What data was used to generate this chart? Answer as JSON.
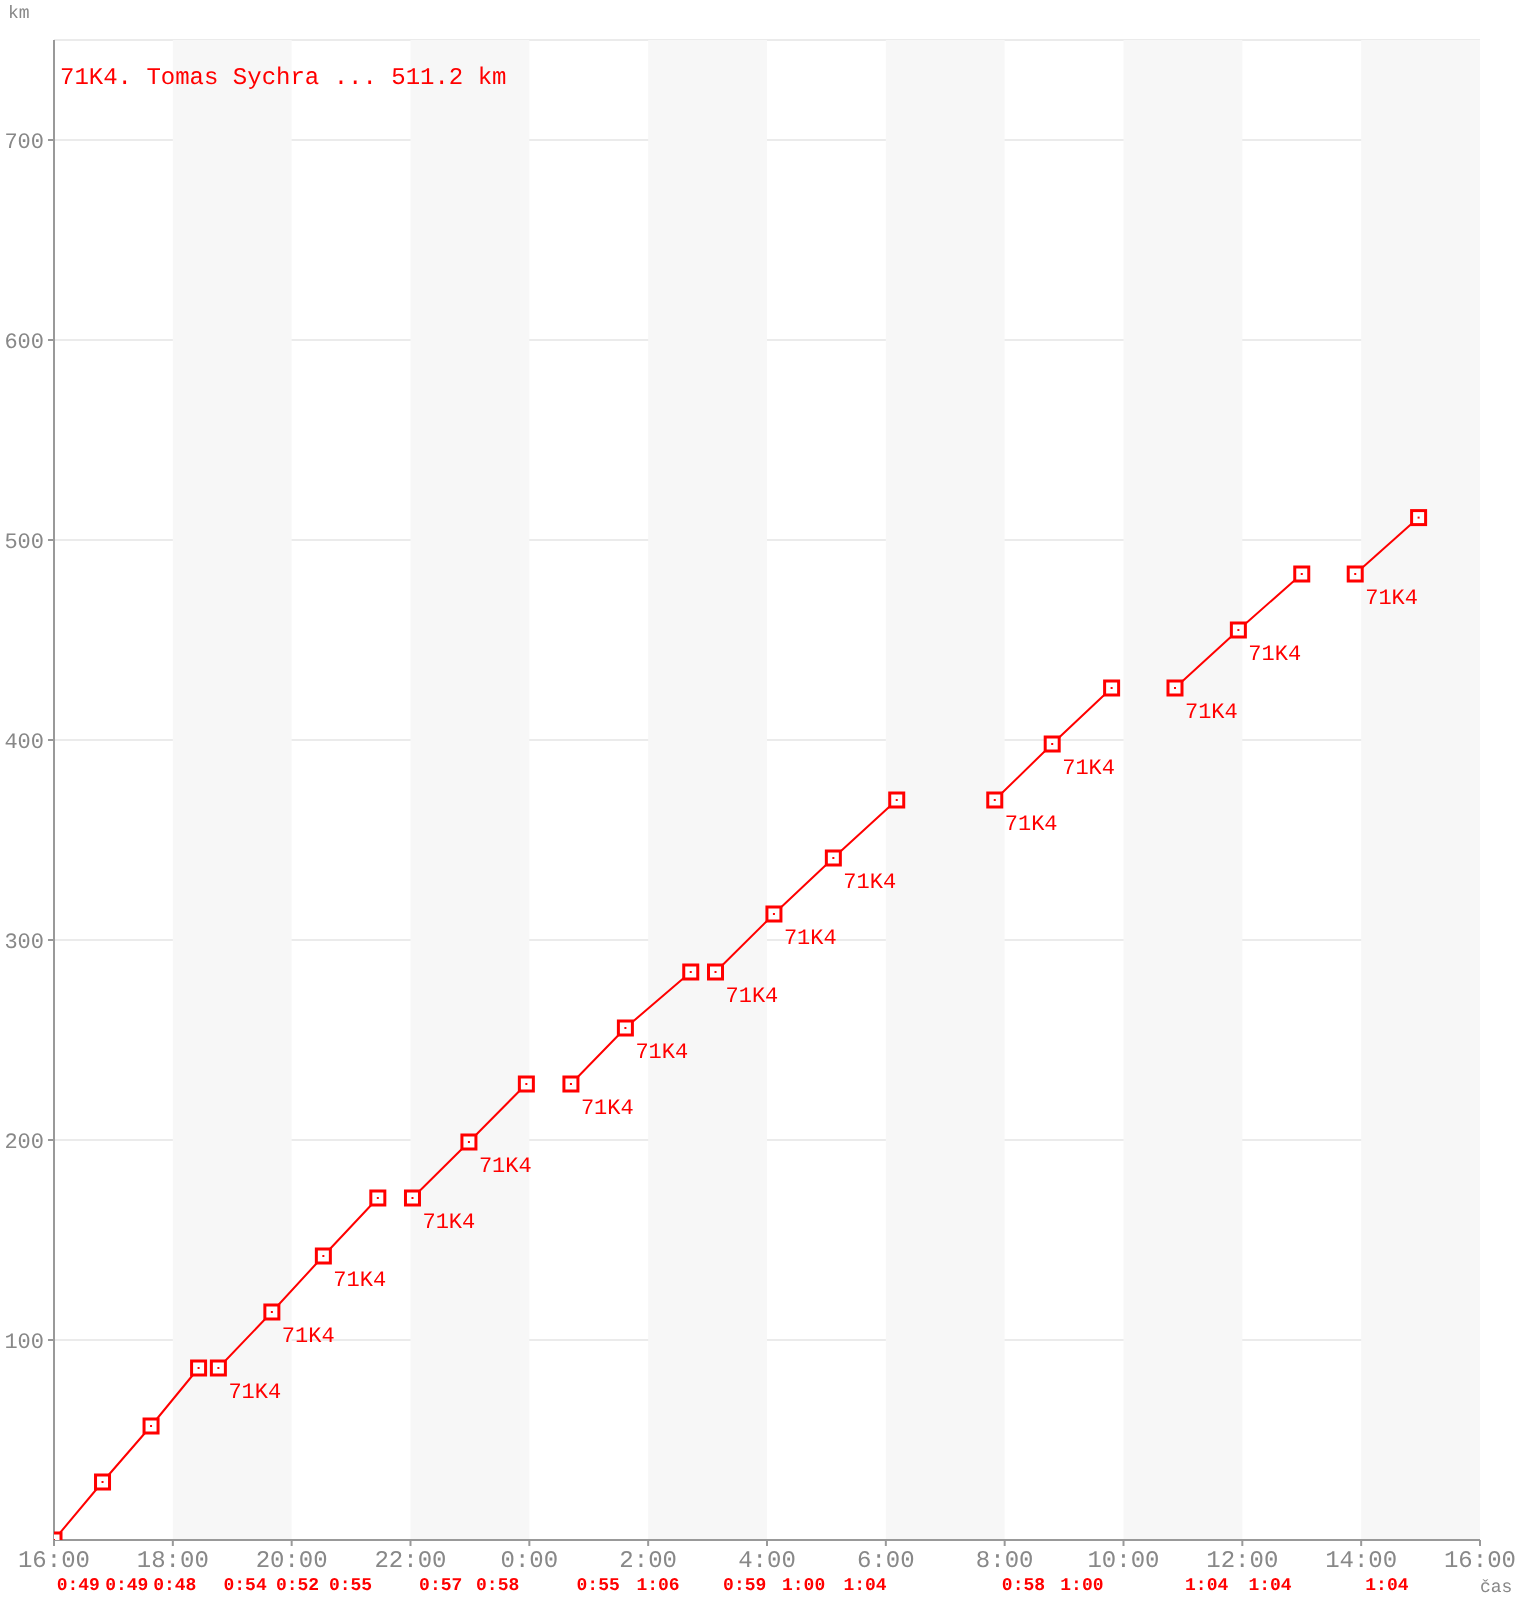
{
  "chart_data": {
    "type": "line",
    "title": "71K4. Tomas Sychra ... 511.2 km",
    "xlabel": "čas",
    "ylabel": "km",
    "xlim": [
      "2000-01-01T16:00",
      "2000-01-02T16:00"
    ],
    "xticks": [
      {
        "value": "2000-01-01T16:00",
        "label": "16:00"
      },
      {
        "value": "2000-01-01T18:00",
        "label": "18:00"
      },
      {
        "value": "2000-01-01T20:00",
        "label": "20:00"
      },
      {
        "value": "2000-01-01T22:00",
        "label": "22:00"
      },
      {
        "value": "2000-01-02T00:00",
        "label": "0:00"
      },
      {
        "value": "2000-01-02T02:00",
        "label": "2:00"
      },
      {
        "value": "2000-01-02T04:00",
        "label": "4:00"
      },
      {
        "value": "2000-01-02T06:00",
        "label": "6:00"
      },
      {
        "value": "2000-01-02T08:00",
        "label": "8:00"
      },
      {
        "value": "2000-01-02T10:00",
        "label": "10:00"
      },
      {
        "value": "2000-01-02T12:00",
        "label": "12:00"
      },
      {
        "value": "2000-01-02T14:00",
        "label": "14:00"
      },
      {
        "value": "2000-01-02T16:00",
        "label": "16:00"
      }
    ],
    "ylim": [
      0,
      750
    ],
    "yticks": [
      100,
      200,
      300,
      400,
      500,
      600,
      700
    ],
    "grid": "y",
    "marker": "square",
    "line_style": "solid",
    "bands": [
      {
        "axis": "x",
        "from": "2000-01-01T18:00",
        "to": "2000-01-01T20:00",
        "color": "#f7f7f7"
      },
      {
        "axis": "x",
        "from": "2000-01-01T22:00",
        "to": "2000-01-02T00:00",
        "color": "#f7f7f7"
      },
      {
        "axis": "x",
        "from": "2000-01-02T02:00",
        "to": "2000-01-02T04:00",
        "color": "#f7f7f7"
      },
      {
        "axis": "x",
        "from": "2000-01-02T06:00",
        "to": "2000-01-02T08:00",
        "color": "#f7f7f7"
      },
      {
        "axis": "x",
        "from": "2000-01-02T10:00",
        "to": "2000-01-02T12:00",
        "color": "#f7f7f7"
      },
      {
        "axis": "x",
        "from": "2000-01-02T14:00",
        "to": "2000-01-02T16:00",
        "color": "#f7f7f7"
      }
    ],
    "series": [
      {
        "color": "#ff0000",
        "x": [
          "2000-01-01T16:00",
          "2000-01-01T16:49",
          "2000-01-01T17:38",
          "2000-01-01T18:26"
        ],
        "values": [
          0,
          29,
          57,
          86
        ]
      },
      {
        "color": "#ff0000",
        "x": [
          "2000-01-01T18:46",
          "2000-01-01T19:40",
          "2000-01-01T20:32",
          "2000-01-01T21:27"
        ],
        "values": [
          86,
          114,
          142,
          171
        ]
      },
      {
        "color": "#ff0000",
        "x": [
          "2000-01-01T22:02",
          "2000-01-01T22:59",
          "2000-01-01T23:57"
        ],
        "values": [
          171,
          199,
          228
        ]
      },
      {
        "color": "#ff0000",
        "x": [
          "2000-01-02T00:42",
          "2000-01-02T01:37",
          "2000-01-02T02:43"
        ],
        "values": [
          228,
          256,
          284
        ]
      },
      {
        "color": "#ff0000",
        "x": [
          "2000-01-02T03:08",
          "2000-01-02T04:07",
          "2000-01-02T05:07",
          "2000-01-02T06:11"
        ],
        "values": [
          284,
          313,
          341,
          370
        ]
      },
      {
        "color": "#ff0000",
        "x": [
          "2000-01-02T07:50",
          "2000-01-02T08:48",
          "2000-01-02T09:48"
        ],
        "values": [
          370,
          398,
          426
        ]
      },
      {
        "color": "#ff0000",
        "x": [
          "2000-01-02T10:52",
          "2000-01-02T11:56",
          "2000-01-02T13:00"
        ],
        "values": [
          426,
          455,
          483
        ]
      },
      {
        "color": "#ff0000",
        "x": [
          "2000-01-02T13:54",
          "2000-01-02T14:58"
        ],
        "values": [
          483,
          511.2
        ]
      }
    ],
    "annotations": [
      "0:49",
      "0:49",
      "0:48",
      "0:54",
      "0:52",
      "0:55",
      "0:57",
      "0:58",
      "0:55",
      "1:06",
      "0:59",
      "1:00",
      "1:04",
      "0:58",
      "1:00",
      "1:04",
      "1:04",
      "1:04",
      {
        "text": "71K4",
        "x": "2000-01-01T18:46",
        "y": 86
      },
      {
        "text": "71K4",
        "x": "2000-01-01T19:40",
        "y": 114
      },
      {
        "text": "71K4",
        "x": "2000-01-01T20:32",
        "y": 142
      },
      {
        "text": "71K4",
        "x": "2000-01-01T22:02",
        "y": 171
      },
      {
        "text": "71K4",
        "x": "2000-01-01T22:59",
        "y": 199
      },
      {
        "text": "71K4",
        "x": "2000-01-02T00:42",
        "y": 228
      },
      {
        "text": "71K4",
        "x": "2000-01-02T01:37",
        "y": 256
      },
      {
        "text": "71K4",
        "x": "2000-01-02T03:08",
        "y": 284
      },
      {
        "text": "71K4",
        "x": "2000-01-02T04:07",
        "y": 313
      },
      {
        "text": "71K4",
        "x": "2000-01-02T05:07",
        "y": 341
      },
      {
        "text": "71K4",
        "x": "2000-01-02T07:50",
        "y": 370
      },
      {
        "text": "71K4",
        "x": "2000-01-02T08:48",
        "y": 398
      },
      {
        "text": "71K4",
        "x": "2000-01-02T10:52",
        "y": 426
      },
      {
        "text": "71K4",
        "x": "2000-01-02T11:56",
        "y": 455
      },
      {
        "text": "71K4",
        "x": "2000-01-02T13:54",
        "y": 483
      }
    ]
  }
}
